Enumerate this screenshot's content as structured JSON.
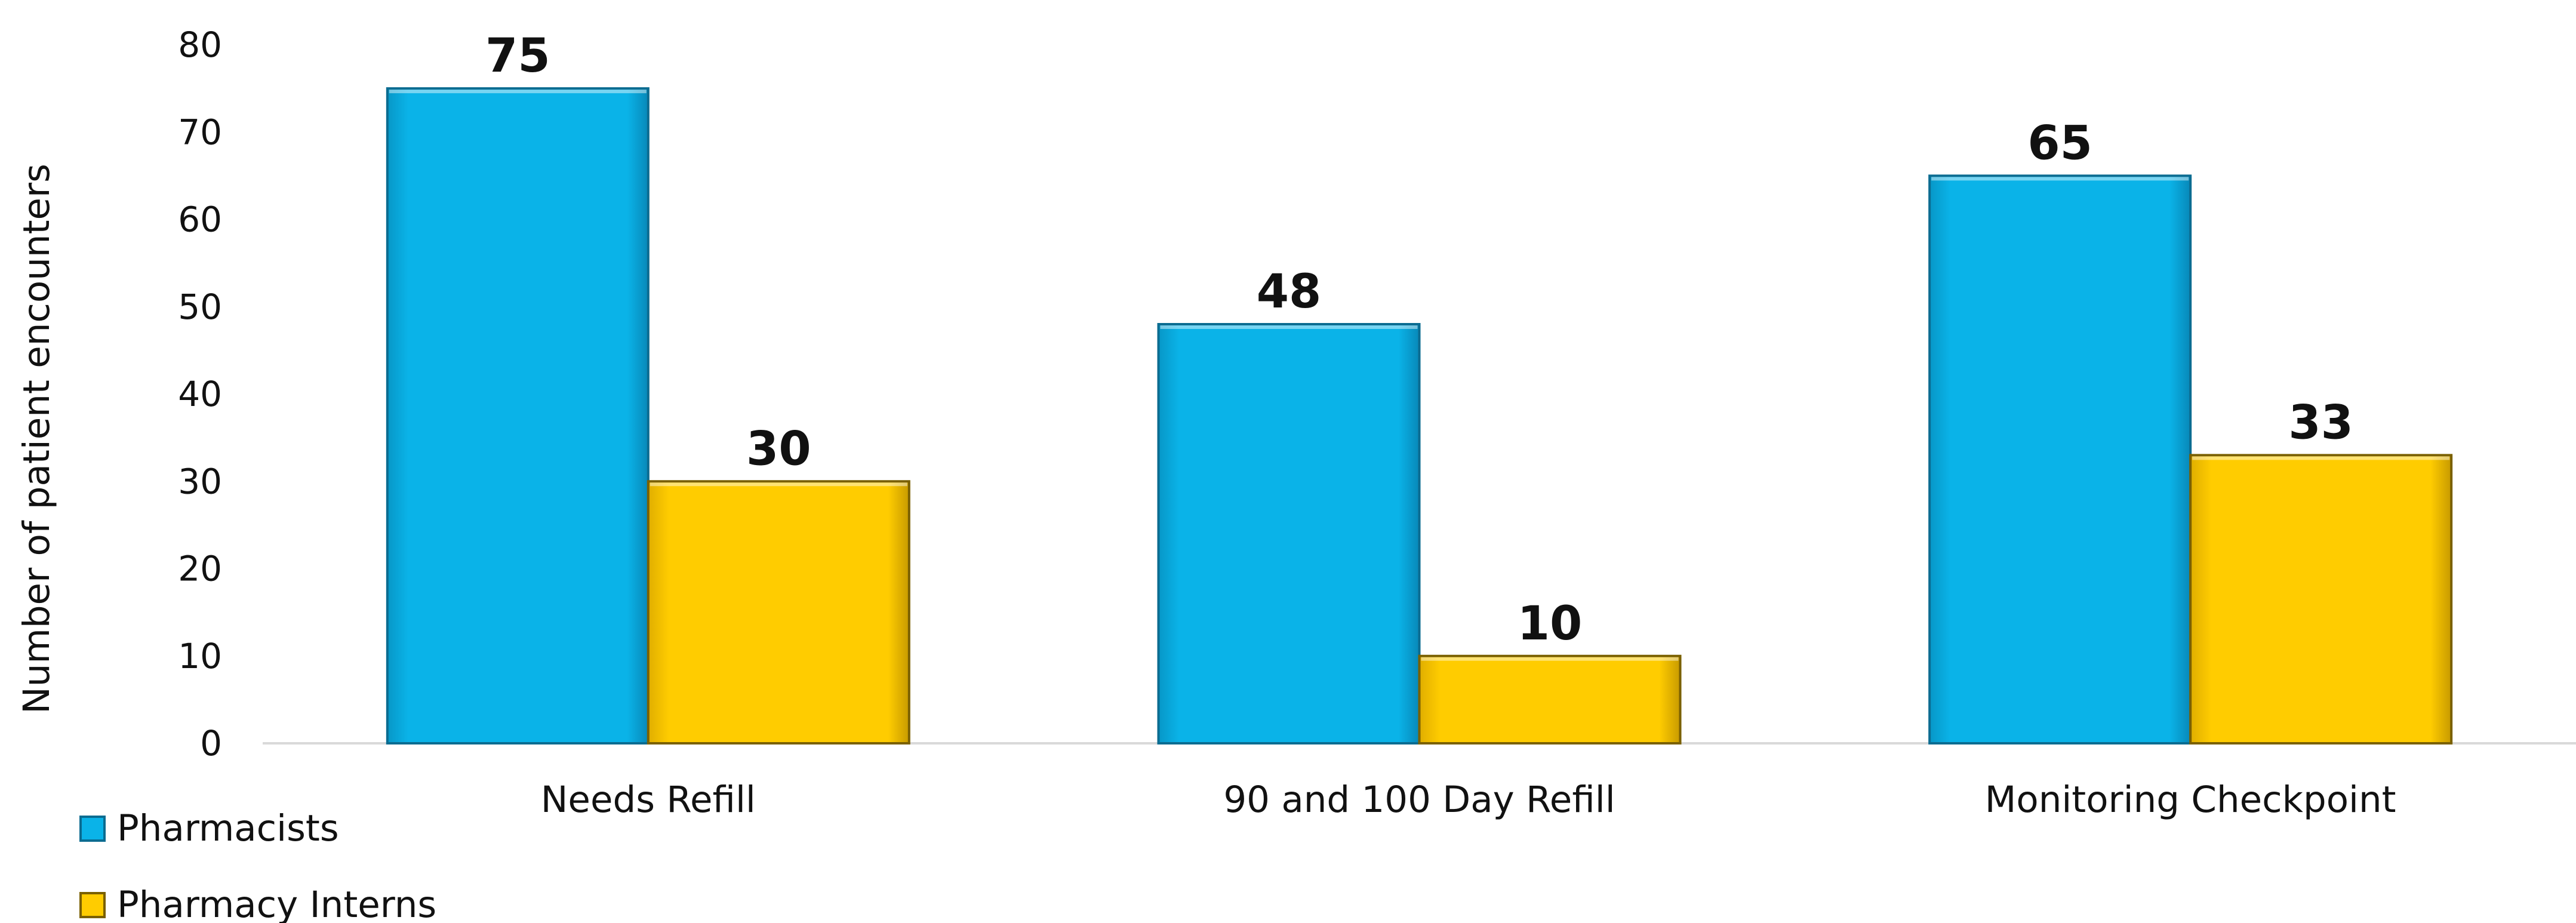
{
  "chart_data": {
    "type": "bar",
    "categories": [
      "Needs Refill",
      "90 and 100 Day Refill",
      "Monitoring Checkpoint"
    ],
    "series": [
      {
        "name": "Pharmacists",
        "values": [
          75,
          48,
          65
        ],
        "color": "#0AB3E8",
        "edge_color": "#0B6C91"
      },
      {
        "name": "Pharmacy Interns",
        "values": [
          30,
          10,
          33
        ],
        "color": "#FFCC00",
        "edge_color": "#7A6000"
      }
    ],
    "title": "",
    "xlabel": "",
    "ylabel": "Number of patient encounters",
    "ylim": [
      0,
      80
    ],
    "yticks": [
      0,
      10,
      20,
      30,
      40,
      50,
      60,
      70,
      80
    ],
    "grid": false,
    "data_labels": true,
    "legend_position": "bottom-left"
  }
}
